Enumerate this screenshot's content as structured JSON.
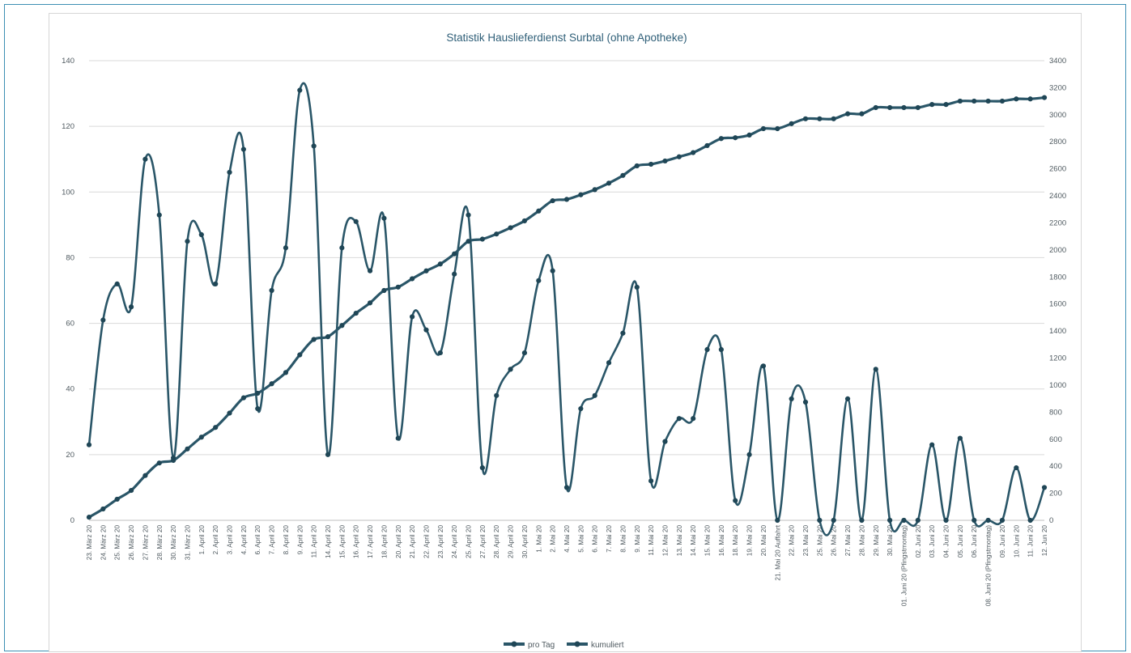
{
  "colors": {
    "frame": "#3d8fb4",
    "series": "#2a5668",
    "grid": "#d9d9d9",
    "text": "#4f5a60",
    "title": "#2f5f78"
  },
  "chart_data": {
    "type": "line",
    "title": "Statistik Hauslieferdienst Surbtal (ohne Apotheke)",
    "xlabel": "",
    "ylabel_left": "",
    "ylabel_right": "",
    "ylim_left": [
      0,
      140
    ],
    "yticks_left": [
      0,
      20,
      40,
      60,
      80,
      100,
      120,
      140
    ],
    "ylim_right": [
      0,
      3400
    ],
    "yticks_right": [
      0,
      200,
      400,
      600,
      800,
      1000,
      1200,
      1400,
      1600,
      1800,
      2000,
      2200,
      2400,
      2600,
      2800,
      3000,
      3200,
      3400
    ],
    "grid": true,
    "legend_position": "bottom",
    "categories": [
      "23. März 20",
      "24. März 20",
      "25. März 20",
      "26. März 20",
      "27. März 20",
      "28. März 20",
      "30. März 20",
      "31. März 20",
      "1. April 20",
      "2. April 20",
      "3. April 20",
      "4. April 20",
      "6. April 20",
      "7. April 20",
      "8. April 20",
      "9. April 20",
      "11. April 20",
      "14. April 20",
      "15. April 20",
      "16. April 20",
      "17. April 20",
      "18. April 20",
      "20. April 20",
      "21. April 20",
      "22. April 20",
      "23. April 20",
      "24. April 20",
      "25. April 20",
      "27. April 20",
      "28. April 20",
      "29. April 20",
      "30. April 20",
      "1. Mai 20",
      "2. Mai 20",
      "4. Mai 20",
      "5. Mai 20",
      "6. Mai 20",
      "7. Mai 20",
      "8. Mai 20",
      "9. Mai 20",
      "11. Mai 20",
      "12. Mai 20",
      "13. Mai 20",
      "14. Mai 20",
      "15. Mai 20",
      "16. Mai 20",
      "18. Mai 20",
      "19. Mai 20",
      "20. Mai 20",
      "21. Mai 20 Auffahrt",
      "22. Mai 20",
      "23. Mai 20",
      "25. Mai 20",
      "26. Mai 20",
      "27. Mai 20",
      "28. Mai 20",
      "29. Mai 20",
      "30. Mai 20",
      "01. Juni 20 (Pfingstmontag)",
      "02. Juni 20",
      "03. Juni 20",
      "04. Juni 20",
      "05. Juni 20",
      "06. Juni 20",
      "08. Juni 20 (Pfingstmontag)",
      "09. Juni 20",
      "10. Juni 20",
      "11. Juni 20",
      "12. Jun 20"
    ],
    "series": [
      {
        "name": "pro Tag",
        "axis": "left",
        "values": [
          23,
          61,
          72,
          65,
          110,
          93,
          19,
          85,
          87,
          72,
          106,
          113,
          34,
          70,
          83,
          131,
          114,
          20,
          83,
          91,
          76,
          92,
          25,
          62,
          58,
          51,
          75,
          93,
          16,
          38,
          46,
          51,
          73,
          76,
          10,
          34,
          38,
          48,
          57,
          71,
          12,
          24,
          31,
          31,
          52,
          52,
          6,
          20,
          47,
          0,
          37,
          36,
          0,
          0,
          37,
          0,
          46,
          0,
          0,
          0,
          23,
          0,
          25,
          0,
          0,
          0,
          16,
          0,
          10
        ]
      },
      {
        "name": "kumuliert",
        "axis": "right",
        "values": [
          23,
          84,
          156,
          221,
          331,
          424,
          443,
          528,
          615,
          687,
          793,
          906,
          940,
          1010,
          1093,
          1224,
          1338,
          1358,
          1441,
          1532,
          1608,
          1700,
          1725,
          1787,
          1845,
          1896,
          1971,
          2064,
          2080,
          2118,
          2164,
          2215,
          2288,
          2364,
          2374,
          2408,
          2446,
          2494,
          2551,
          2622,
          2634,
          2658,
          2689,
          2720,
          2772,
          2824,
          2830,
          2850,
          2897,
          2897,
          2934,
          2970,
          2970,
          2970,
          3007,
          3007,
          3053,
          3053,
          3053,
          3053,
          3076,
          3076,
          3101,
          3101,
          3101,
          3101,
          3117,
          3117,
          3127
        ]
      }
    ]
  }
}
